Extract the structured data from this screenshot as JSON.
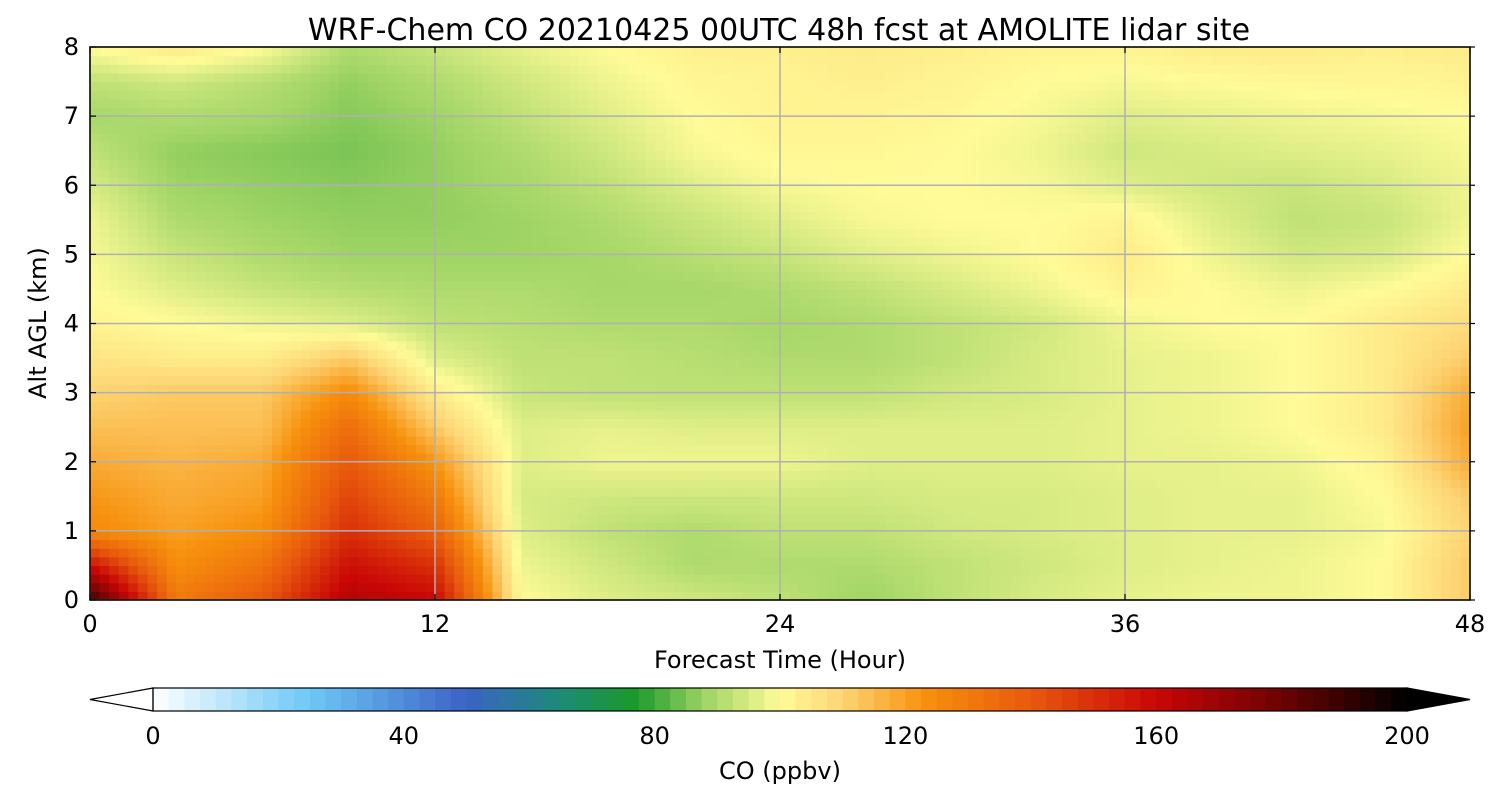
{
  "chart_data": {
    "type": "heatmap",
    "title": "WRF-Chem CO  20210425 00UTC 48h fcst at AMOLITE lidar site",
    "xlabel": "Forecast Time (Hour)",
    "ylabel": "Alt AGL (km)",
    "xlim": [
      0,
      48
    ],
    "ylim": [
      0,
      8
    ],
    "x_ticks": [
      "0",
      "12",
      "24",
      "36",
      "48"
    ],
    "y_ticks": [
      "0",
      "1",
      "2",
      "3",
      "4",
      "5",
      "6",
      "7",
      "8"
    ],
    "grid": true,
    "x": [
      0,
      3,
      6,
      9,
      12,
      15,
      18,
      21,
      24,
      27,
      30,
      33,
      36,
      39,
      42,
      45,
      48
    ],
    "y": [
      0,
      0.5,
      1,
      1.5,
      2,
      2.5,
      3,
      3.5,
      4,
      4.5,
      5,
      5.5,
      6,
      6.5,
      7,
      7.5,
      8
    ],
    "values": [
      [
        190,
        130,
        140,
        165,
        160,
        100,
        96,
        94,
        92,
        88,
        92,
        95,
        97,
        98,
        98,
        100,
        112
      ],
      [
        158,
        124,
        132,
        158,
        150,
        98,
        94,
        90,
        90,
        90,
        92,
        94,
        96,
        97,
        98,
        100,
        112
      ],
      [
        125,
        120,
        124,
        150,
        138,
        96,
        92,
        90,
        92,
        92,
        94,
        95,
        96,
        97,
        97,
        99,
        110
      ],
      [
        122,
        118,
        120,
        145,
        130,
        95,
        94,
        94,
        94,
        94,
        95,
        95,
        96,
        97,
        97,
        100,
        112
      ],
      [
        118,
        116,
        118,
        140,
        122,
        96,
        98,
        98,
        98,
        96,
        96,
        96,
        97,
        97,
        98,
        102,
        118
      ],
      [
        114,
        114,
        114,
        134,
        112,
        96,
        97,
        96,
        96,
        96,
        96,
        96,
        97,
        98,
        100,
        104,
        120
      ],
      [
        110,
        112,
        112,
        125,
        104,
        93,
        92,
        92,
        92,
        92,
        94,
        95,
        97,
        98,
        100,
        104,
        118
      ],
      [
        106,
        104,
        104,
        112,
        96,
        92,
        92,
        91,
        90,
        90,
        92,
        95,
        97,
        98,
        100,
        104,
        112
      ],
      [
        102,
        100,
        98,
        96,
        92,
        91,
        90,
        90,
        89,
        90,
        92,
        94,
        98,
        100,
        100,
        104,
        108
      ],
      [
        100,
        96,
        93,
        91,
        90,
        90,
        89,
        89,
        90,
        92,
        95,
        98,
        102,
        100,
        98,
        100,
        104
      ],
      [
        99,
        93,
        90,
        88,
        88,
        88,
        89,
        91,
        93,
        96,
        98,
        100,
        104,
        98,
        94,
        95,
        100
      ],
      [
        98,
        90,
        88,
        87,
        87,
        88,
        90,
        93,
        96,
        99,
        100,
        100,
        102,
        96,
        92,
        93,
        98
      ],
      [
        95,
        88,
        87,
        86,
        87,
        89,
        92,
        96,
        99,
        100,
        100,
        99,
        96,
        94,
        93,
        95,
        98
      ],
      [
        92,
        87,
        86,
        85,
        87,
        90,
        94,
        99,
        101,
        101,
        100,
        98,
        94,
        95,
        96,
        97,
        99
      ],
      [
        89,
        90,
        89,
        86,
        88,
        92,
        96,
        100,
        102,
        102,
        101,
        99,
        96,
        97,
        98,
        99,
        100
      ],
      [
        92,
        94,
        91,
        87,
        90,
        94,
        98,
        101,
        102,
        103,
        102,
        100,
        99,
        100,
        101,
        101,
        102
      ],
      [
        100,
        105,
        100,
        90,
        93,
        97,
        100,
        103,
        103,
        104,
        103,
        102,
        102,
        104,
        104,
        103,
        104
      ]
    ],
    "colorbar": {
      "label": "CO  (ppbv)",
      "range": [
        0,
        200
      ],
      "ticks": [
        "0",
        "40",
        "80",
        "120",
        "160",
        "200"
      ],
      "extend": "both",
      "color_stops": [
        {
          "v": 0,
          "c": "#ffffff"
        },
        {
          "v": 25,
          "c": "#6cc8f5"
        },
        {
          "v": 50,
          "c": "#3a63c6"
        },
        {
          "v": 65,
          "c": "#1c8b77"
        },
        {
          "v": 77,
          "c": "#1a9a2a"
        },
        {
          "v": 88,
          "c": "#9fd465"
        },
        {
          "v": 100,
          "c": "#fffb98"
        },
        {
          "v": 110,
          "c": "#fdd474"
        },
        {
          "v": 123,
          "c": "#f7910d"
        },
        {
          "v": 140,
          "c": "#e8590d"
        },
        {
          "v": 160,
          "c": "#c90606"
        },
        {
          "v": 180,
          "c": "#6b0303"
        },
        {
          "v": 200,
          "c": "#000000"
        }
      ]
    }
  }
}
